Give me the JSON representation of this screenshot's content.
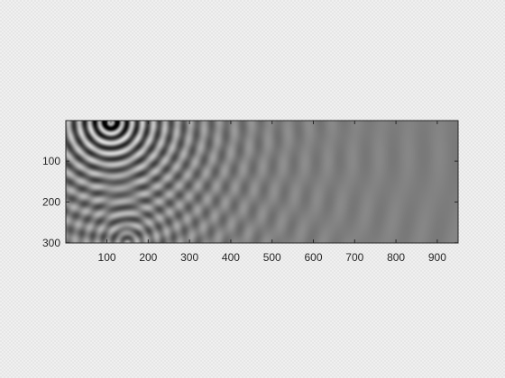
{
  "chart_data": {
    "type": "heatmap",
    "title": "",
    "xlabel": "",
    "ylabel": "",
    "x_range": [
      1,
      950
    ],
    "y_range": [
      1,
      300
    ],
    "y_reversed": true,
    "colormap": "gray",
    "x_ticks": [
      100,
      200,
      300,
      400,
      500,
      600,
      700,
      800,
      900
    ],
    "y_ticks": [
      100,
      200,
      300
    ],
    "x_tick_labels": [
      "100",
      "200",
      "300",
      "400",
      "500",
      "600",
      "700",
      "800",
      "900"
    ],
    "y_tick_labels": [
      "100",
      "200",
      "300"
    ],
    "grid": false,
    "field": {
      "description_source": "wavefield",
      "background_level": 0.5,
      "sources": [
        {
          "x": 110,
          "y": 5,
          "amplitude": 1.0
        },
        {
          "x": 150,
          "y": 300,
          "amplitude": 0.35
        }
      ],
      "wavelength": 22,
      "amplitude_decay": 160
    },
    "colors": {
      "axes": "#262626",
      "background": "#808080"
    }
  }
}
